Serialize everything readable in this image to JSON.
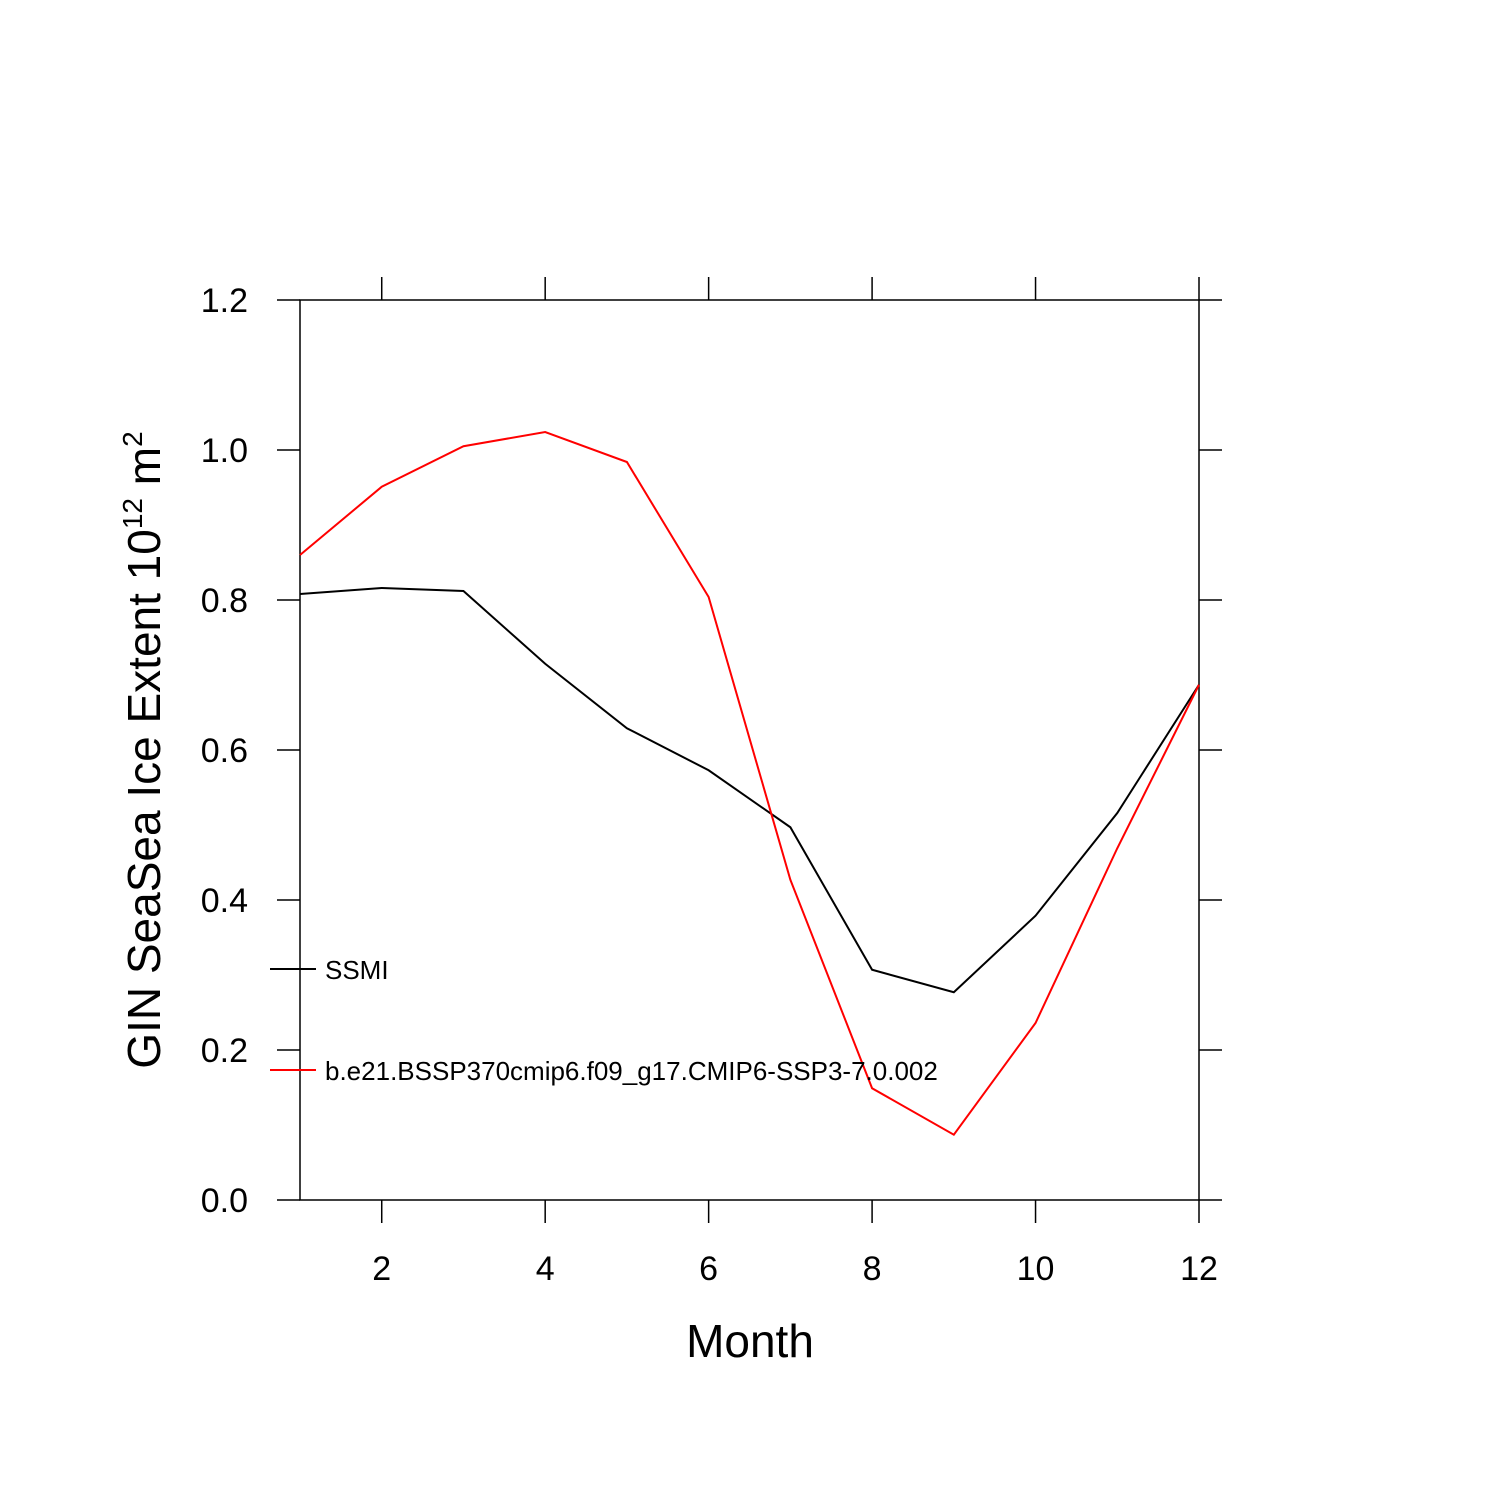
{
  "chart_data": {
    "type": "line",
    "xlabel": "Month",
    "ylabel": [
      "GIN SeaSea Ice Extent 10",
      "12",
      " m",
      "2"
    ],
    "x": [
      1,
      2,
      3,
      4,
      5,
      6,
      7,
      8,
      9,
      10,
      11,
      12
    ],
    "series": [
      {
        "name": "SSMI",
        "color": "#000000",
        "values": [
          0.808,
          0.816,
          0.812,
          0.715,
          0.629,
          0.573,
          0.497,
          0.307,
          0.277,
          0.379,
          0.516,
          0.687
        ]
      },
      {
        "name": "b.e21.BSSP370cmip6.f09_g17.CMIP6-SSP3-7.0.002",
        "color": "#ff0000",
        "values": [
          0.86,
          0.951,
          1.005,
          1.024,
          0.984,
          0.804,
          0.427,
          0.149,
          0.087,
          0.236,
          0.469,
          0.687
        ]
      }
    ],
    "xlim": [
      1,
      12
    ],
    "xticks": [
      2,
      4,
      6,
      8,
      10,
      12
    ],
    "ylim": [
      0,
      1.2
    ],
    "yticks": [
      {
        "value": 0,
        "label": "0.0"
      },
      0.2,
      0.4,
      0.6,
      0.8,
      {
        "value": 1,
        "label": "1.0"
      },
      1.2
    ]
  }
}
